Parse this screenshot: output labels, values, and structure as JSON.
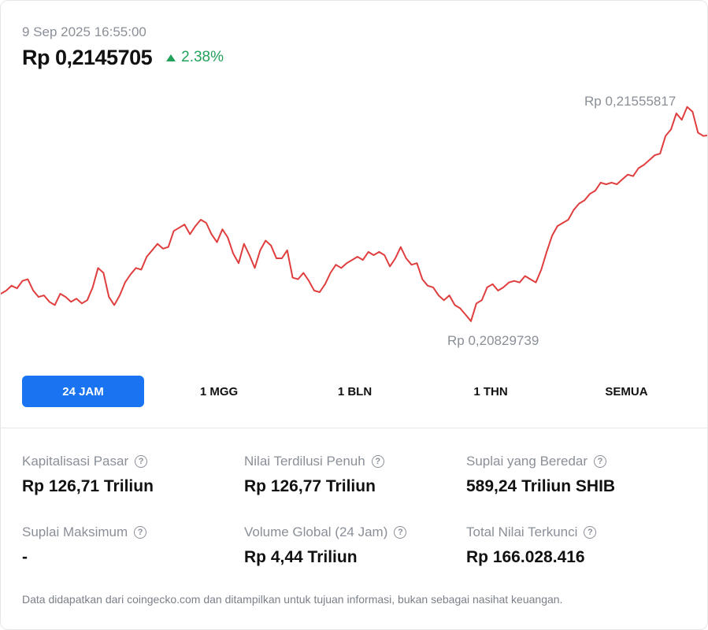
{
  "header": {
    "timestamp": "9 Sep 2025 16:55:00",
    "price": "Rp 0,2145705",
    "change": "2.38%",
    "change_direction": "up",
    "change_color": "#22a15a"
  },
  "chart_data": {
    "type": "line",
    "series": [
      {
        "values": [
          0.20965,
          0.20975,
          0.2099,
          0.20982,
          0.21005,
          0.2101,
          0.20975,
          0.20955,
          0.2096,
          0.2094,
          0.2093,
          0.20965,
          0.20955,
          0.2094,
          0.2095,
          0.20935,
          0.20945,
          0.20985,
          0.21045,
          0.2103,
          0.20955,
          0.2093,
          0.2096,
          0.21,
          0.21025,
          0.21045,
          0.2104,
          0.2108,
          0.211,
          0.2112,
          0.21105,
          0.2111,
          0.2116,
          0.2117,
          0.2118,
          0.2115,
          0.21175,
          0.21195,
          0.21185,
          0.2115,
          0.21125,
          0.21165,
          0.2114,
          0.2109,
          0.2106,
          0.2112,
          0.21085,
          0.21045,
          0.211,
          0.2113,
          0.21115,
          0.21075,
          0.21075,
          0.211,
          0.21015,
          0.2101,
          0.2103,
          0.21005,
          0.20975,
          0.2097,
          0.20995,
          0.2103,
          0.21055,
          0.21045,
          0.2106,
          0.2107,
          0.2108,
          0.2107,
          0.21095,
          0.21085,
          0.21095,
          0.21085,
          0.2105,
          0.21075,
          0.2111,
          0.21075,
          0.21055,
          0.2106,
          0.2101,
          0.2099,
          0.20985,
          0.2096,
          0.20945,
          0.2096,
          0.2093,
          0.2092,
          0.209,
          0.2088,
          0.20935,
          0.20945,
          0.20985,
          0.20995,
          0.20975,
          0.20985,
          0.21,
          0.21005,
          0.21,
          0.2102,
          0.2101,
          0.21,
          0.2104,
          0.21095,
          0.21145,
          0.21175,
          0.21185,
          0.21195,
          0.21225,
          0.21245,
          0.21255,
          0.21275,
          0.21285,
          0.2131,
          0.21305,
          0.2131,
          0.21305,
          0.2132,
          0.21335,
          0.2133,
          0.21355,
          0.21365,
          0.2138,
          0.21395,
          0.214,
          0.21455,
          0.21475,
          0.21525,
          0.21505,
          0.21545,
          0.2153,
          0.21465,
          0.21455,
          0.21457
        ]
      }
    ],
    "high": 0.21555817,
    "low": 0.20829739,
    "high_label": "Rp 0,21555817",
    "low_label": "Rp 0,20829739",
    "line_color": "#e03e3e",
    "ylim": [
      0.2075,
      0.2163
    ],
    "grid": false
  },
  "ranges": {
    "selected": "24 JAM",
    "items": [
      "24 JAM",
      "1 MGG",
      "1 BLN",
      "1 THN",
      "SEMUA"
    ],
    "active_color": "#1a73f0"
  },
  "stats": {
    "market_cap": {
      "label": "Kapitalisasi Pasar",
      "value": "Rp 126,71 Triliun"
    },
    "fdv": {
      "label": "Nilai Terdilusi Penuh",
      "value": "Rp 126,77 Triliun"
    },
    "circulating_supply": {
      "label": "Suplai yang Beredar",
      "value": "589,24 Triliun SHIB"
    },
    "max_supply": {
      "label": "Suplai Maksimum",
      "value": "-"
    },
    "volume": {
      "label": "Volume Global (24 Jam)",
      "value": "Rp 4,44 Triliun"
    },
    "tvl": {
      "label": "Total Nilai Terkunci",
      "value": "Rp 166.028.416"
    },
    "help_icon_glyph": "?"
  },
  "disclaimer": "Data didapatkan dari coingecko.com dan ditampilkan untuk tujuan informasi, bukan sebagai nasihat keuangan."
}
